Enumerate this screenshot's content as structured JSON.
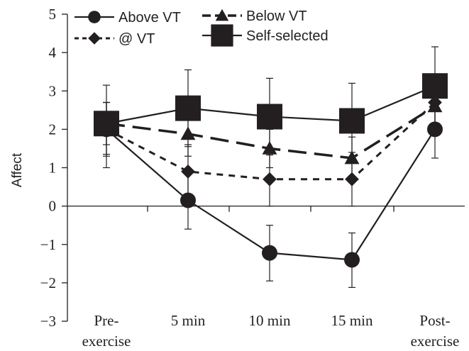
{
  "chart_data": {
    "type": "line",
    "title": "",
    "ylabel": "Affect",
    "xlabel": "",
    "categories": [
      [
        "Pre-",
        "exercise"
      ],
      [
        "5 min"
      ],
      [
        "10 min"
      ],
      [
        "15 min"
      ],
      [
        "Post-",
        "exercise"
      ]
    ],
    "ylim": [
      -3,
      5
    ],
    "yticks": [
      -3,
      -2,
      -1,
      0,
      1,
      2,
      3,
      4,
      5
    ],
    "ytick_labels": [
      "−3",
      "−2",
      "−1",
      "0",
      "1",
      "2",
      "3",
      "4",
      "5"
    ],
    "grid": false,
    "legend_position": "top-left",
    "series": [
      {
        "name": "Above VT",
        "marker": "circle",
        "line": "solid",
        "color": "#231f20",
        "values": [
          2.0,
          0.15,
          -1.22,
          -1.4,
          2.0
        ],
        "err_upper": [
          2.7,
          0.9,
          -0.5,
          -0.7,
          2.6
        ],
        "err_lower": [
          1.35,
          -0.6,
          -1.95,
          -2.12,
          1.25
        ]
      },
      {
        "name": "Below VT",
        "marker": "triangle",
        "line": "long-dash",
        "color": "#231f20",
        "values": [
          2.15,
          1.88,
          1.5,
          1.25,
          2.6
        ],
        "err_upper": [
          2.7,
          2.5,
          2.0,
          1.8,
          3.3
        ],
        "err_lower": [
          1.6,
          1.3,
          1.0,
          0.7,
          1.9
        ]
      },
      {
        "name": "@ VT",
        "marker": "diamond",
        "line": "short-dash",
        "color": "#231f20",
        "values": [
          2.0,
          0.9,
          0.7,
          0.7,
          2.7
        ],
        "err_upper": [
          2.7,
          1.6,
          1.4,
          1.4,
          3.3
        ],
        "err_lower": [
          1.3,
          0.2,
          0.0,
          0.0,
          2.1
        ]
      },
      {
        "name": "Self-selected",
        "marker": "square",
        "line": "solid",
        "color": "#231f20",
        "values": [
          2.15,
          2.55,
          2.33,
          2.22,
          3.13
        ],
        "err_upper": [
          3.15,
          3.55,
          3.33,
          3.2,
          4.15
        ],
        "err_lower": [
          1.0,
          1.55,
          1.33,
          1.25,
          2.1
        ]
      }
    ]
  }
}
